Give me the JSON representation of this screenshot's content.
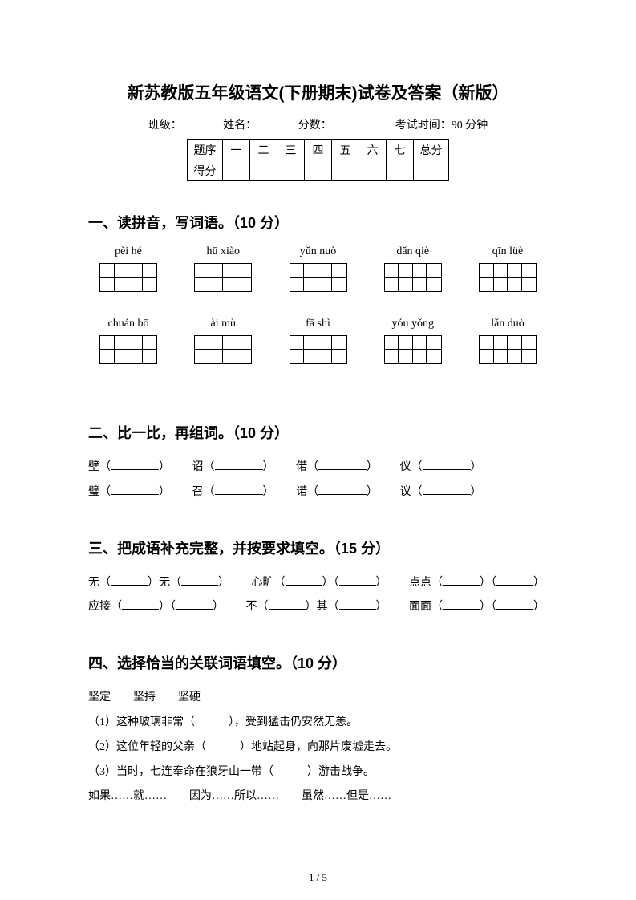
{
  "title": "新苏教版五年级语文(下册期末)试卷及答案（新版）",
  "info": {
    "class_label": "班级：",
    "name_label": "姓名：",
    "score_label": "分数：",
    "time_label": "考试时间：90 分钟"
  },
  "score_table": {
    "row1": [
      "题序",
      "一",
      "二",
      "三",
      "四",
      "五",
      "六",
      "七",
      "总分"
    ],
    "row2_head": "得分"
  },
  "s1": {
    "heading": "一、读拼音，写词语。（10 分）",
    "row1": [
      "pèi hé",
      "hū xiào",
      "yǔn nuò",
      "dǎn qiè",
      "qīn lüè"
    ],
    "row2": [
      "chuán bō",
      "ài mù",
      "fā shì",
      "yóu yǒng",
      "lǎn duò"
    ]
  },
  "s2": {
    "heading": "二、比一比，再组词。（10 分）",
    "r1": {
      "a": "壁（",
      "b": "诏（",
      "c": "偌（",
      "d": "仪（",
      "close": "）"
    },
    "r2": {
      "a": "璧（",
      "b": "召（",
      "c": "诺（",
      "d": "议（",
      "close": "）"
    }
  },
  "s3": {
    "heading": "三、把成语补充完整，并按要求填空。（15 分）",
    "r1": {
      "a1": "无（",
      "a2": "）无（",
      "a3": "）",
      "b1": "心旷（",
      "b2": "）（",
      "b3": "）",
      "c1": "点点（",
      "c2": "）（",
      "c3": "）"
    },
    "r2": {
      "a1": "应接（",
      "a2": "）（",
      "a3": "）",
      "b1": "不（",
      "b2": "）其（",
      "b3": "）",
      "c1": "面面（",
      "c2": "）（",
      "c3": "）"
    }
  },
  "s4": {
    "heading": "四、选择恰当的关联词语填空。（10 分）",
    "words": "坚定　　坚持　　坚硬",
    "l1": "（1）这种玻璃非常（　　　），受到猛击仍安然无恙。",
    "l2": "（2）这位年轻的父亲（　　　）地站起身，向那片废墟走去。",
    "l3": "（3）当时，七连奉命在狼牙山一带（　　　）游击战争。",
    "l4": "如果……就……　　因为……所以……　　虽然……但是……"
  },
  "page_num": "1 / 5",
  "colors": {
    "text": "#000000",
    "bg": "#ffffff",
    "border": "#000000"
  }
}
